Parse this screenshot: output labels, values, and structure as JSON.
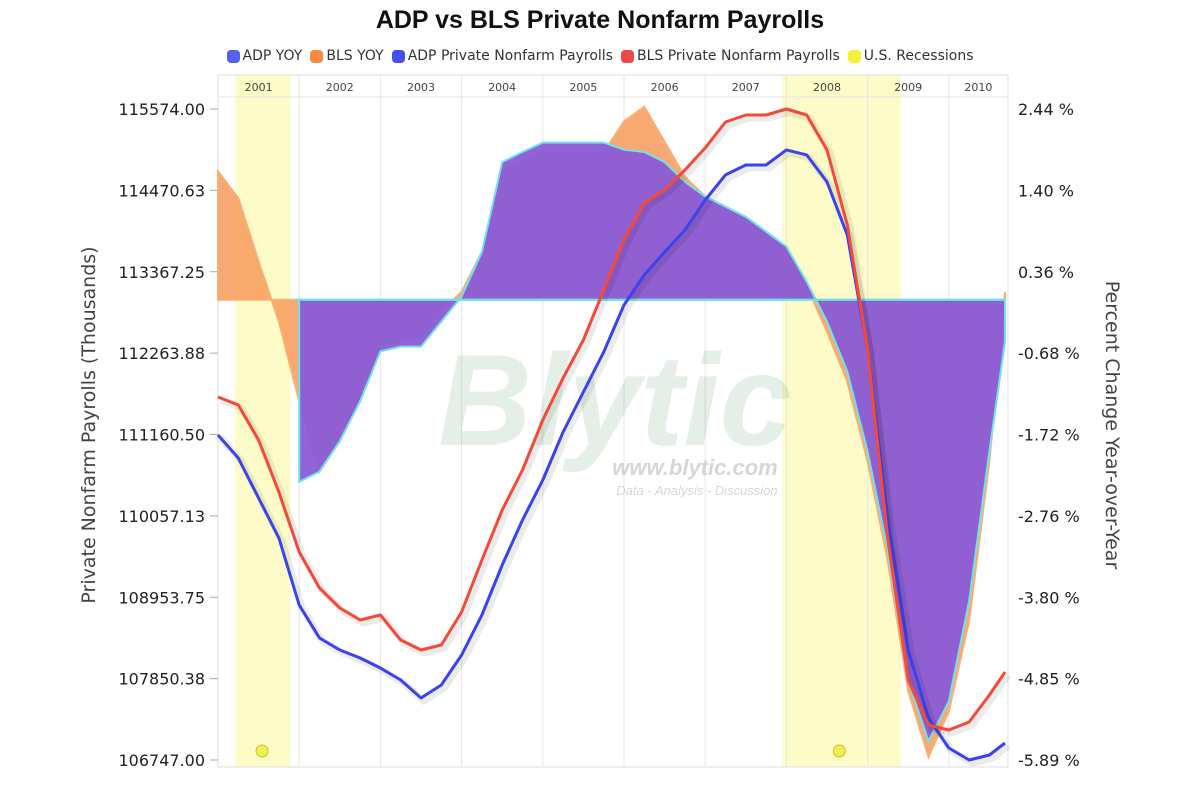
{
  "chart_data": {
    "type": "line",
    "title": "ADP vs BLS Private Nonfarm Payrolls",
    "ylabel": "Private Nonfarm Payrolls (Thousands)",
    "y2label": "Percent Change Year-over-Year",
    "ylim": [
      106747.0,
      115574.0
    ],
    "y2lim": [
      -5.89,
      2.44
    ],
    "yticks": [
      "106747.00",
      "107850.38",
      "108953.75",
      "110057.13",
      "111160.50",
      "112263.88",
      "113367.25",
      "114470.63",
      "115574.00"
    ],
    "y2ticks": [
      "-5.89 %",
      "-4.85 %",
      "-3.80 %",
      "-2.76 %",
      "-1.72 %",
      "-0.68 %",
      "0.36 %",
      "1.40 %",
      "2.44 %"
    ],
    "years": [
      "2001",
      "2002",
      "2003",
      "2004",
      "2005",
      "2006",
      "2007",
      "2008",
      "2009",
      "2010"
    ],
    "x_start": 2001.0,
    "x_step": 0.25,
    "legend": [
      {
        "name": "ADP YOY",
        "color": "#5560f0"
      },
      {
        "name": "BLS YOY",
        "color": "#f58a40"
      },
      {
        "name": "ADP Private Nonfarm Payrolls",
        "color": "#4450f0"
      },
      {
        "name": "BLS Private Nonfarm Payrolls",
        "color": "#f04848"
      },
      {
        "name": "U.S. Recessions",
        "color": "#f5f03a"
      }
    ],
    "recessions": [
      [
        2001.21,
        2001.89
      ],
      [
        2007.95,
        2009.41
      ]
    ],
    "series": [
      {
        "name": "ADP Private Nonfarm Payrolls",
        "axis": "left",
        "color": "#3a44ee",
        "start_index": 0,
        "values": [
          111154,
          110842,
          110300,
          109757,
          108849,
          108401,
          108239,
          108130,
          107995,
          107832,
          107588,
          107764,
          108171,
          108713,
          109391,
          110001,
          110544,
          111195,
          111737,
          112279,
          112917,
          113324,
          113635,
          113934,
          114340,
          114680,
          114815,
          114815,
          115019,
          114951,
          114585,
          113866,
          112307,
          110001,
          108239,
          107317,
          106910,
          106747,
          106815,
          106978
        ]
      },
      {
        "name": "BLS Private Nonfarm Payrolls",
        "axis": "left",
        "color": "#f44a3a",
        "start_index": 0,
        "values": [
          111669,
          111561,
          111086,
          110381,
          109568,
          109079,
          108808,
          108645,
          108713,
          108374,
          108239,
          108306,
          108754,
          109459,
          110137,
          110679,
          111357,
          111927,
          112442,
          113120,
          113798,
          114300,
          114476,
          114747,
          115046,
          115398,
          115493,
          115493,
          115574,
          115493,
          115019,
          114001,
          112307,
          109730,
          107832,
          107222,
          107154,
          107262,
          107628,
          107940
        ]
      },
      {
        "name": "BLS YOY",
        "axis": "right",
        "type": "area",
        "color": "#f7a062",
        "start_index": 0,
        "values": [
          1.64,
          1.3,
          0.49,
          -0.28,
          -1.3,
          -2.2,
          -1.81,
          -1.24,
          -0.6,
          -0.54,
          -0.47,
          -0.15,
          0.1,
          0.61,
          1.64,
          1.76,
          1.89,
          1.89,
          1.89,
          1.89,
          2.28,
          2.47,
          2.02,
          1.57,
          1.32,
          1.19,
          1.06,
          0.87,
          0.68,
          0.17,
          -0.41,
          -1.05,
          -2.07,
          -3.35,
          -5.01,
          -5.85,
          -5.27,
          -4.11,
          -2.07,
          0.1
        ]
      },
      {
        "name": "ADP YOY",
        "axis": "right",
        "type": "area",
        "color": "#8a5bd6",
        "start_index": 4,
        "values": [
          -2.33,
          -2.2,
          -1.81,
          -1.3,
          -0.66,
          -0.6,
          -0.6,
          -0.28,
          0.04,
          0.61,
          1.76,
          1.89,
          2.01,
          2.01,
          2.01,
          2.01,
          1.92,
          1.89,
          1.76,
          1.51,
          1.32,
          1.19,
          1.06,
          0.87,
          0.68,
          0.23,
          -0.28,
          -0.92,
          -1.94,
          -3.22,
          -4.88,
          -5.65,
          -5.14,
          -3.86,
          -1.94,
          -0.54
        ]
      }
    ]
  },
  "watermark": {
    "logo": "Blytic",
    "url": "www.blytic.com",
    "tagline": "Data - Analysis - Discussion"
  }
}
